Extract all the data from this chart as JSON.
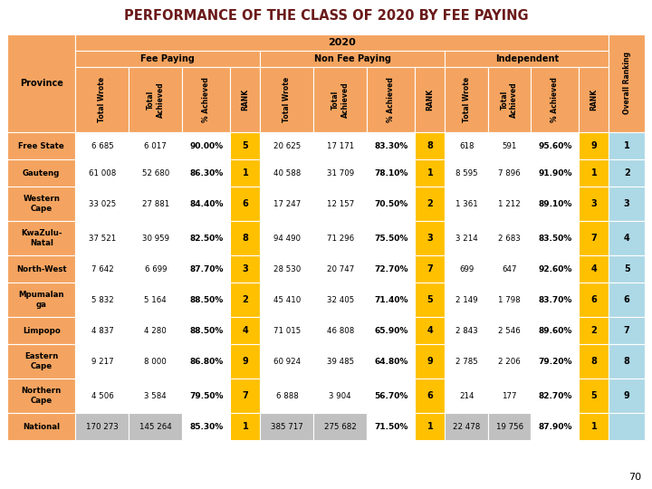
{
  "title": "PERFORMANCE OF THE CLASS OF 2020 BY FEE PAYING",
  "title_color": "#6B1A1A",
  "header_bg": "#F4A460",
  "rank_bg": "#FFC000",
  "overall_bg": "#ADD8E6",
  "national_bg": "#C0C0C0",
  "row_bg_white": "#FFFFFF",
  "page_number": "70",
  "row_labels": [
    "Free State",
    "Gauteng",
    "Western\nCape",
    "KwaZulu-\nNatal",
    "North-West",
    "Mpumalan\nga",
    "Limpopo",
    "Eastern\nCape",
    "Northern\nCape",
    "National"
  ],
  "data": [
    [
      6685,
      6017,
      "90.00%",
      5,
      20625,
      17171,
      "83.30%",
      8,
      618,
      591,
      "95.60%",
      9,
      1
    ],
    [
      61008,
      52680,
      "86.30%",
      1,
      40588,
      31709,
      "78.10%",
      1,
      8595,
      7896,
      "91.90%",
      1,
      2
    ],
    [
      33025,
      27881,
      "84.40%",
      6,
      17247,
      12157,
      "70.50%",
      2,
      1361,
      1212,
      "89.10%",
      3,
      3
    ],
    [
      37521,
      30959,
      "82.50%",
      8,
      94490,
      71296,
      "75.50%",
      3,
      3214,
      2683,
      "83.50%",
      7,
      4
    ],
    [
      7642,
      6699,
      "87.70%",
      3,
      28530,
      20747,
      "72.70%",
      7,
      699,
      647,
      "92.60%",
      4,
      5
    ],
    [
      5832,
      5164,
      "88.50%",
      2,
      45410,
      32405,
      "71.40%",
      5,
      2149,
      1798,
      "83.70%",
      6,
      6
    ],
    [
      4837,
      4280,
      "88.50%",
      4,
      71015,
      46808,
      "65.90%",
      4,
      2843,
      2546,
      "89.60%",
      2,
      7
    ],
    [
      9217,
      8000,
      "86.80%",
      9,
      60924,
      39485,
      "64.80%",
      9,
      2785,
      2206,
      "79.20%",
      8,
      8
    ],
    [
      4506,
      3584,
      "79.50%",
      7,
      6888,
      3904,
      "56.70%",
      6,
      214,
      177,
      "82.70%",
      5,
      9
    ],
    [
      170273,
      145264,
      "85.30%",
      1,
      385717,
      275682,
      "71.50%",
      1,
      22478,
      19756,
      "87.90%",
      1,
      ""
    ]
  ]
}
